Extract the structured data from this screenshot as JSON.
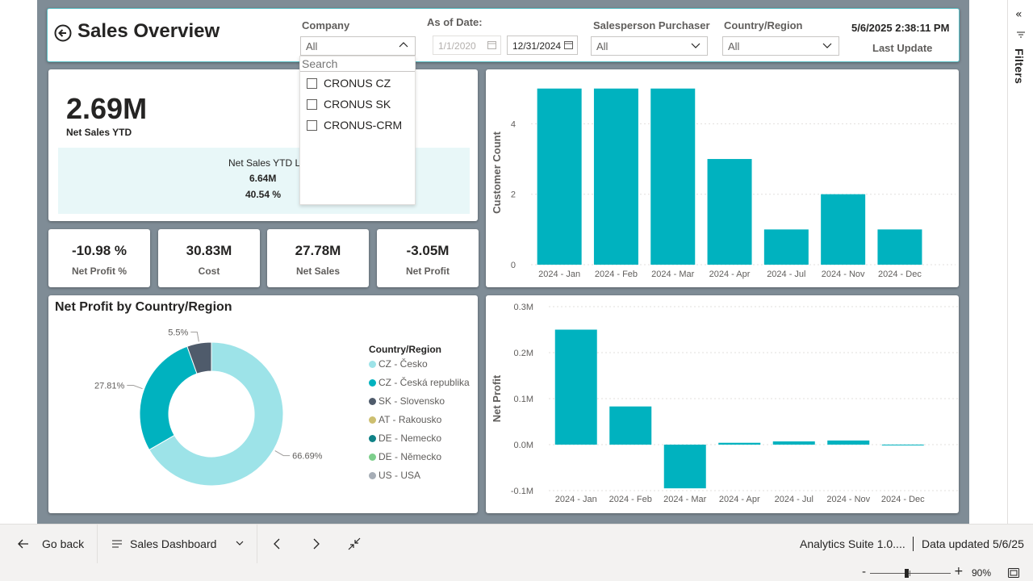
{
  "header": {
    "title": "Sales Overview",
    "slicers": {
      "company": {
        "label": "Company",
        "value": "All"
      },
      "as_of_date": {
        "label": "As of Date:",
        "from": "1/1/2020",
        "to": "12/31/2024"
      },
      "salesperson": {
        "label": "Salesperson Purchaser",
        "value": "All"
      },
      "country": {
        "label": "Country/Region",
        "value": "All"
      }
    },
    "last_update": {
      "timestamp": "5/6/2025 2:38:11 PM",
      "label": "Last Update"
    }
  },
  "company_popup": {
    "search_placeholder": "Search",
    "items": [
      "CRONUS CZ",
      "CRONUS SK",
      "CRONUS-CRM"
    ]
  },
  "kpi_main": {
    "value": "2.69M",
    "label": "Net Sales YTD",
    "ly_label": "Net Sales YTD LY",
    "ly_value": "6.64M",
    "ly_pct": "40.54 %"
  },
  "kpis": [
    {
      "value": "-10.98 %",
      "label": "Net Profit %"
    },
    {
      "value": "30.83M",
      "label": "Cost"
    },
    {
      "value": "27.78M",
      "label": "Net Sales"
    },
    {
      "value": "-3.05M",
      "label": "Net Profit"
    }
  ],
  "pie": {
    "title": "Net Profit by Country/Region",
    "legend_title": "Country/Region",
    "legend": [
      {
        "name": "CZ - Česko",
        "color": "#9de3e8"
      },
      {
        "name": "CZ - Česká republika",
        "color": "#00b2bf"
      },
      {
        "name": "SK - Slovensko",
        "color": "#4f5b6b"
      },
      {
        "name": "AT - Rakousko",
        "color": "#cdbf70"
      },
      {
        "name": "DE - Nemecko",
        "color": "#0f8287"
      },
      {
        "name": "DE - Německo",
        "color": "#7dcf8c"
      },
      {
        "name": "US - USA",
        "color": "#a6adb6"
      }
    ]
  },
  "chart_data": [
    {
      "type": "bar",
      "categories": [
        "2024 - Jan",
        "2024 - Feb",
        "2024 - Mar",
        "2024 - Apr",
        "2024 - Jul",
        "2024 - Nov",
        "2024 - Dec"
      ],
      "values": [
        5,
        5,
        5,
        3,
        1,
        2,
        1
      ],
      "ylabel": "Customer Count",
      "yticks": [
        "0",
        "2",
        "4"
      ],
      "ylim": [
        0,
        5.2
      ],
      "color": "#00b2bf",
      "grid": true
    },
    {
      "type": "pie",
      "title": "Net Profit by Country/Region",
      "labels": [
        "CZ - Česko",
        "CZ - Česká republika",
        "SK - Slovensko"
      ],
      "values": [
        66.69,
        27.81,
        5.5
      ],
      "data_labels": [
        "66.69%",
        "27.81%",
        "5.5%"
      ],
      "colors": [
        "#9de3e8",
        "#00b2bf",
        "#4f5b6b"
      ]
    },
    {
      "type": "bar",
      "categories": [
        "2024 - Jan",
        "2024 - Feb",
        "2024 - Mar",
        "2024 - Apr",
        "2024 - Jul",
        "2024 - Nov",
        "2024 - Dec"
      ],
      "values": [
        0.25,
        0.083,
        -0.095,
        0.004,
        0.007,
        0.009,
        -0.001
      ],
      "ylabel": "Net Profit",
      "yticks": [
        "-0.1M",
        "0.0M",
        "0.1M",
        "0.2M",
        "0.3M"
      ],
      "ylim": [
        -0.1,
        0.3
      ],
      "color": "#00b2bf",
      "grid": true
    }
  ],
  "filters_pane": {
    "label": "Filters"
  },
  "bottom_bar": {
    "go_back": "Go back",
    "page_name": "Sales Dashboard",
    "app_name": "Analytics Suite 1.0....",
    "data_updated": "Data updated 5/6/25",
    "zoom_minus": "-",
    "zoom_plus": "+",
    "zoom": "90%"
  }
}
